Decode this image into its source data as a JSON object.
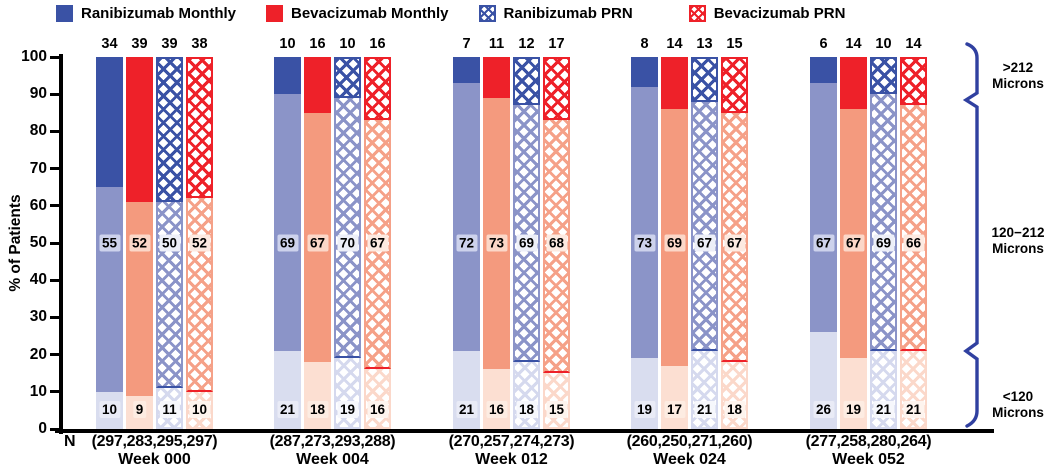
{
  "ylabel": "% of Patients",
  "n_prefix": "N",
  "yticks": [
    100,
    90,
    80,
    70,
    60,
    50,
    40,
    30,
    20,
    10,
    0
  ],
  "colors": {
    "blue": "#3a52a5",
    "blue_mid": "#8b94c8",
    "blue_light": "#d9ddef",
    "red": "#ee2129",
    "red_mid": "#f49a7e",
    "red_light": "#fcdfd2",
    "brace": "#3040a0",
    "axis": "#000000"
  },
  "arms": [
    {
      "label": "Ranibizumab Monthly",
      "pattern": "solid",
      "color_top": "#3a52a5",
      "color_mid": "#8b94c8",
      "color_bot": "#d9ddef",
      "label_bg_mid": "#cdd2ec",
      "label_bg_bot": "#e9ebf6"
    },
    {
      "label": "Bevacizumab Monthly",
      "pattern": "solid",
      "color_top": "#ee2129",
      "color_mid": "#f49a7e",
      "color_bot": "#fcdfd2",
      "label_bg_mid": "#fbd7c8",
      "label_bg_bot": "#fdece2"
    },
    {
      "label": "Ranibizumab PRN",
      "pattern": "hatch",
      "color_top": "#3a52a5",
      "color_mid": "#8b94c8",
      "color_bot": "#d5d9ee",
      "label_bg_mid": "#edeff8",
      "label_bg_bot": "#f6f7fc"
    },
    {
      "label": "Bevacizumab PRN",
      "pattern": "hatch",
      "color_top": "#ee2129",
      "color_mid": "#f5a188",
      "color_bot": "#fbd8ca",
      "label_bg_mid": "#fdeae1",
      "label_bg_bot": "#fef4ee"
    }
  ],
  "right_labels": [
    {
      "lines": [
        ">212",
        "Microns"
      ]
    },
    {
      "lines": [
        "120−212",
        "Microns"
      ]
    },
    {
      "lines": [
        "<120",
        "Microns"
      ]
    }
  ],
  "chart_data": {
    "type": "bar",
    "variant": "grouped-100pct-stacked",
    "title": "",
    "ylabel": "% of Patients",
    "ylim": [
      0,
      100
    ],
    "yticks": [
      0,
      10,
      20,
      30,
      40,
      50,
      60,
      70,
      80,
      90,
      100
    ],
    "categories": [
      "Week 000",
      "Week 004",
      "Week 012",
      "Week 024",
      "Week 052"
    ],
    "group_labels": [
      "Ranibizumab Monthly",
      "Bevacizumab Monthly",
      "Ranibizumab PRN",
      "Bevacizumab PRN"
    ],
    "stack_segments": [
      "<120 Microns",
      "120−212 Microns",
      ">212 Microns"
    ],
    "legend_position": "top",
    "values_pct": {
      "gt212": [
        [
          34,
          39,
          39,
          38
        ],
        [
          10,
          16,
          10,
          16
        ],
        [
          7,
          11,
          12,
          17
        ],
        [
          8,
          14,
          13,
          15
        ],
        [
          6,
          14,
          10,
          14
        ]
      ],
      "mid120_212": [
        [
          55,
          52,
          50,
          52
        ],
        [
          69,
          67,
          70,
          67
        ],
        [
          72,
          73,
          69,
          68
        ],
        [
          73,
          69,
          67,
          67
        ],
        [
          67,
          67,
          69,
          66
        ]
      ],
      "lt120": [
        [
          10,
          9,
          11,
          10
        ],
        [
          21,
          18,
          19,
          16
        ],
        [
          21,
          16,
          18,
          15
        ],
        [
          19,
          17,
          21,
          18
        ],
        [
          26,
          19,
          21,
          21
        ]
      ]
    },
    "n_per_week": [
      "(297,283,295,297)",
      "(287,273,293,288)",
      "(270,257,274,273)",
      "(260,250,271,260)",
      "(277,258,280,264)"
    ]
  }
}
